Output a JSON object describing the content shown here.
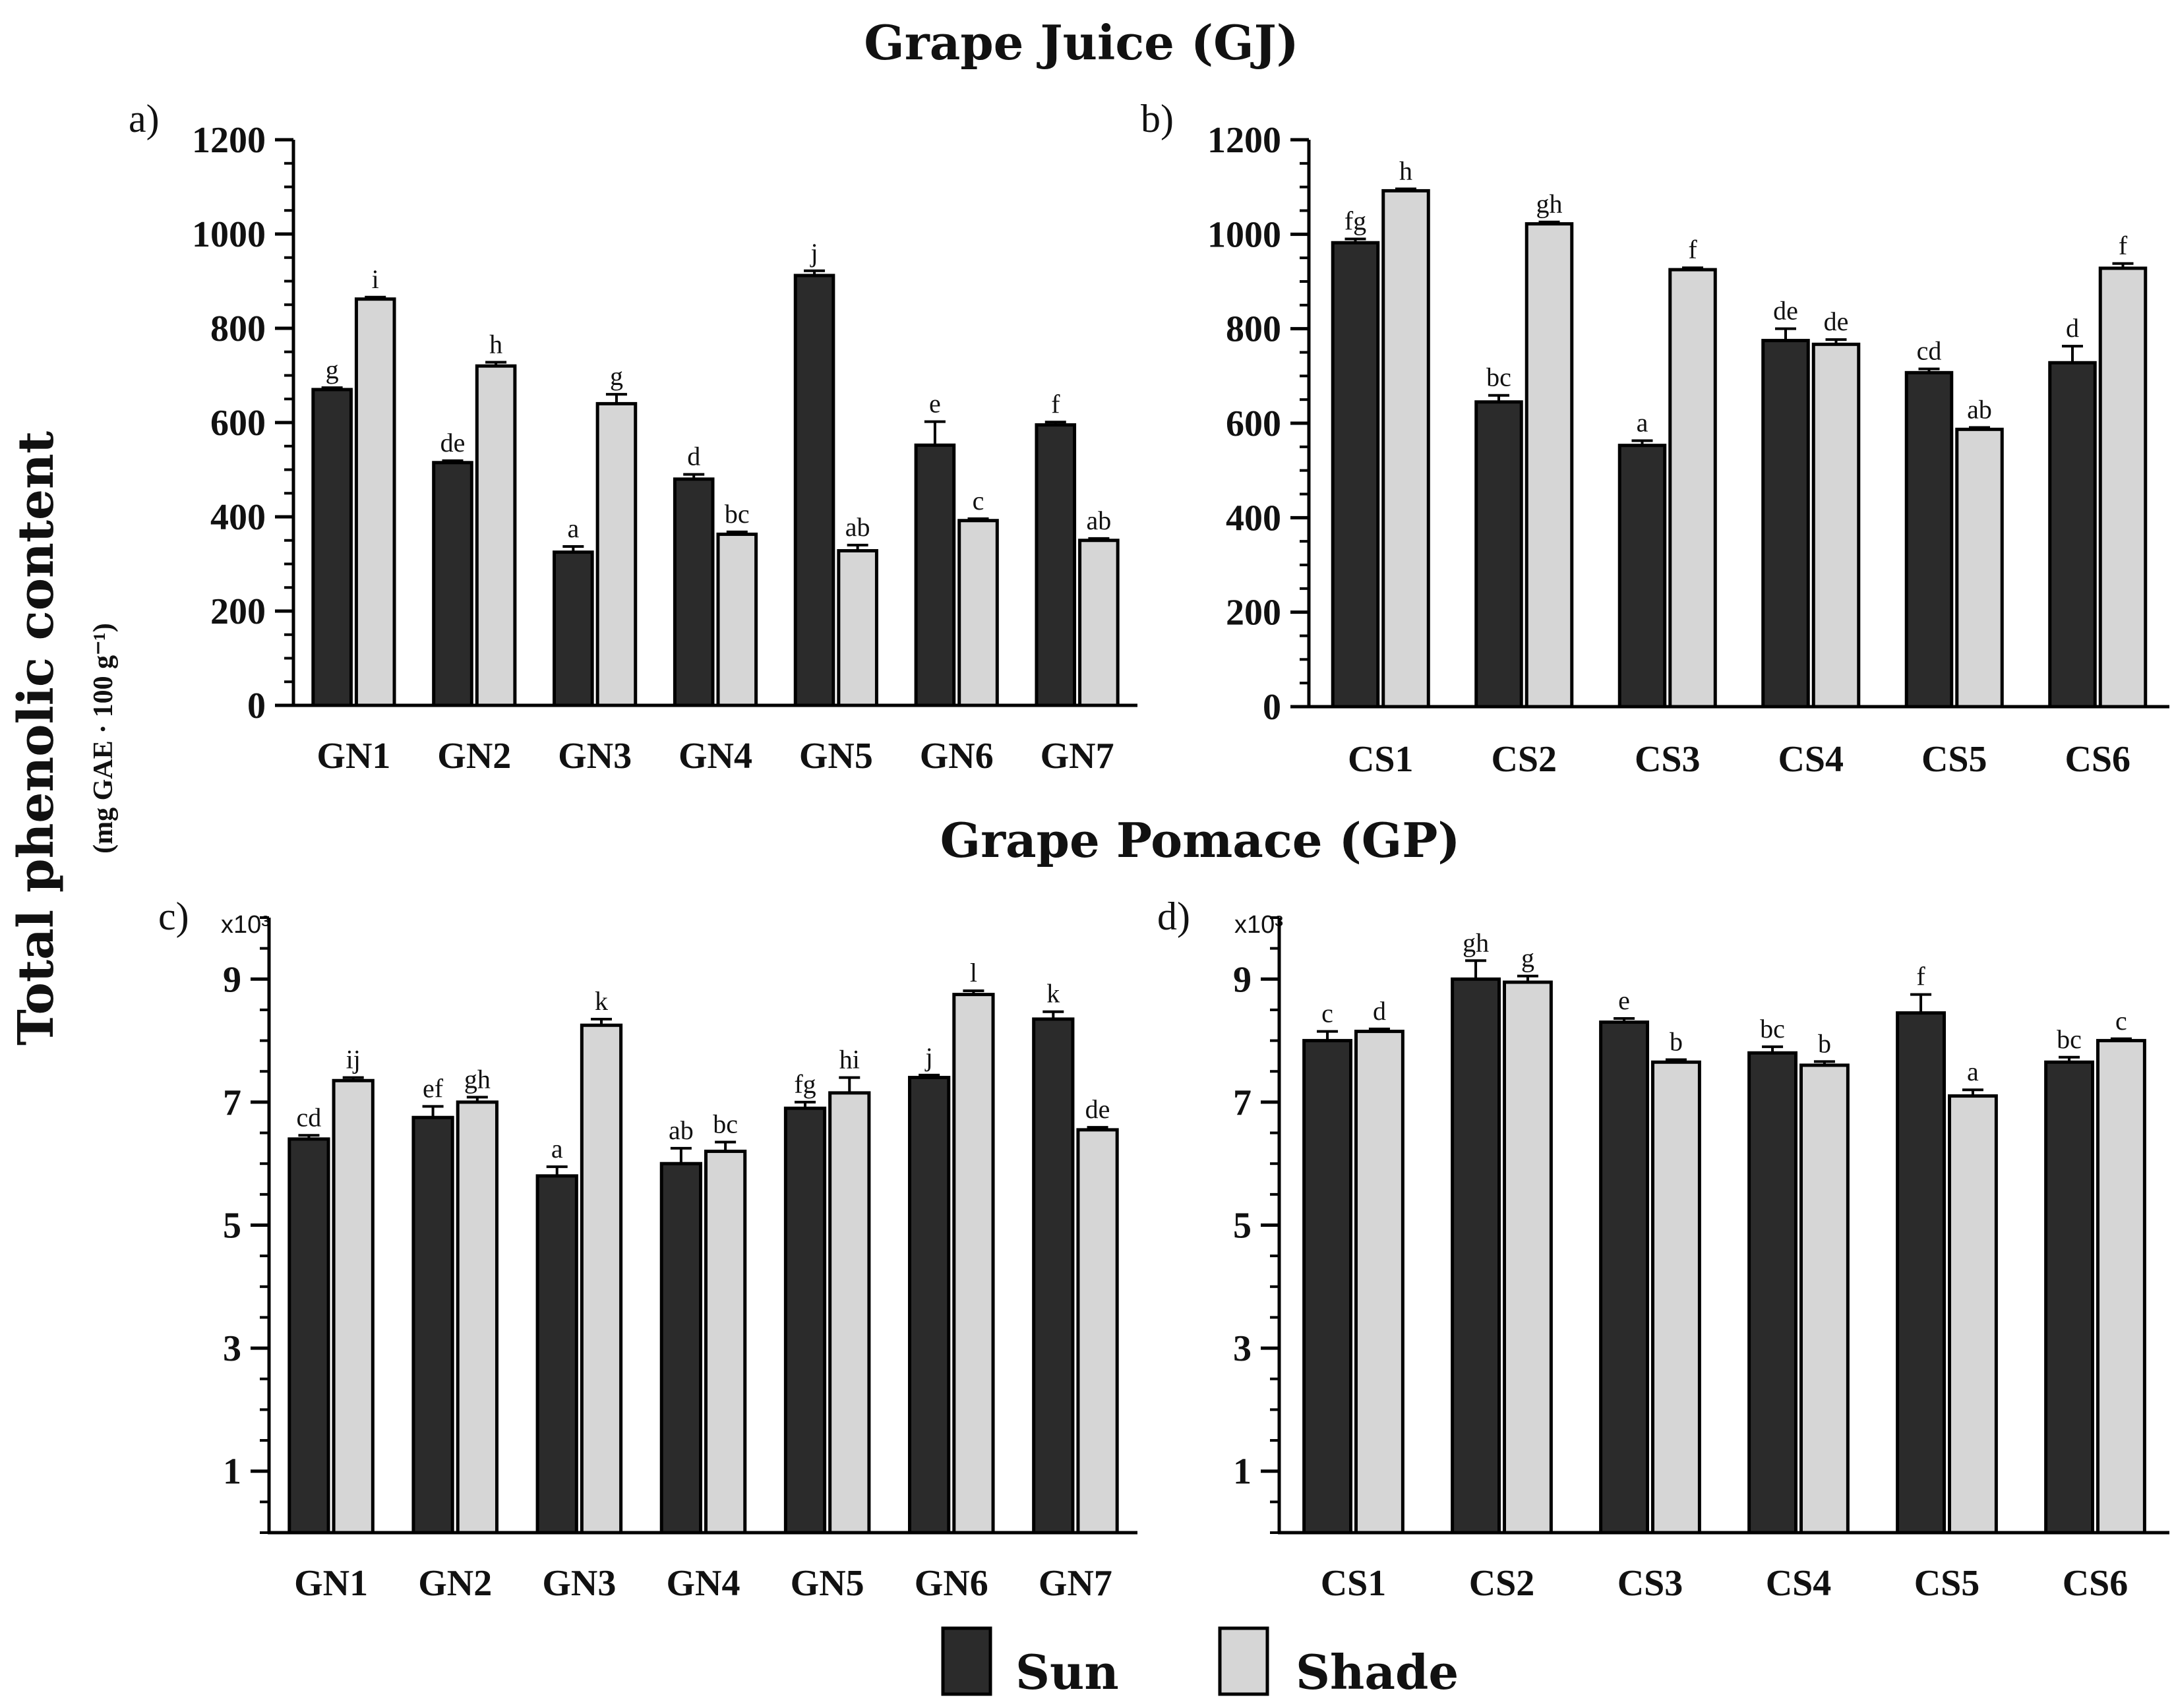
{
  "titles": {
    "juice": "Grape Juice (GJ)",
    "pomace": "Grape Pomace (GP)"
  },
  "ylabel": {
    "main": "Total phenolic content",
    "unit": "(mg GAE · 100 g⁻¹)"
  },
  "legend": {
    "sun": "Sun",
    "shade": "Shade",
    "sun_color": "#2b2b2b",
    "shade_color": "#d6d6d6"
  },
  "chart_data": [
    {
      "type": "bar",
      "label": "a)",
      "scale_label": "",
      "categories": [
        "GN1",
        "GN2",
        "GN3",
        "GN4",
        "GN5",
        "GN6",
        "GN7"
      ],
      "ylim": [
        0,
        1200
      ],
      "yticks": [
        0,
        200,
        400,
        600,
        800,
        1000,
        1200
      ],
      "series": [
        {
          "name": "Sun",
          "values": [
            670,
            515,
            325,
            480,
            912,
            552,
            595
          ],
          "errors": [
            4,
            4,
            12,
            10,
            10,
            50,
            6
          ],
          "letters": [
            "g",
            "de",
            "a",
            "d",
            "j",
            "e",
            "f"
          ]
        },
        {
          "name": "Shade",
          "values": [
            862,
            720,
            640,
            363,
            328,
            392,
            350
          ],
          "errors": [
            4,
            8,
            20,
            5,
            12,
            4,
            4
          ],
          "letters": [
            "i",
            "h",
            "g",
            "bc",
            "ab",
            "c",
            "ab"
          ]
        }
      ]
    },
    {
      "type": "bar",
      "label": "b)",
      "scale_label": "",
      "categories": [
        "CS1",
        "CS2",
        "CS3",
        "CS4",
        "CS5",
        "CS6"
      ],
      "ylim": [
        0,
        1200
      ],
      "yticks": [
        0,
        200,
        400,
        600,
        800,
        1000,
        1200
      ],
      "series": [
        {
          "name": "Sun",
          "values": [
            982,
            645,
            553,
            775,
            707,
            728
          ],
          "errors": [
            8,
            14,
            10,
            25,
            8,
            35
          ],
          "letters": [
            "fg",
            "bc",
            "a",
            "de",
            "cd",
            "d"
          ]
        },
        {
          "name": "Shade",
          "values": [
            1092,
            1022,
            925,
            767,
            587,
            928
          ],
          "errors": [
            4,
            4,
            4,
            10,
            4,
            10
          ],
          "letters": [
            "h",
            "gh",
            "f",
            "de",
            "ab",
            "f"
          ]
        }
      ]
    },
    {
      "type": "bar",
      "label": "c)",
      "scale_label": "x10³",
      "categories": [
        "GN1",
        "GN2",
        "GN3",
        "GN4",
        "GN5",
        "GN6",
        "GN7"
      ],
      "ylim": [
        0,
        10
      ],
      "yticks": [
        1,
        3,
        5,
        7,
        9
      ],
      "series": [
        {
          "name": "Sun",
          "values": [
            6.4,
            6.75,
            5.8,
            6.0,
            6.9,
            7.4,
            8.35
          ],
          "errors": [
            0.06,
            0.18,
            0.15,
            0.25,
            0.1,
            0.04,
            0.12
          ],
          "letters": [
            "cd",
            "ef",
            "a",
            "ab",
            "fg",
            "j",
            "k"
          ]
        },
        {
          "name": "Shade",
          "values": [
            7.35,
            7.0,
            8.25,
            6.2,
            7.15,
            8.75,
            6.55
          ],
          "errors": [
            0.05,
            0.08,
            0.1,
            0.15,
            0.25,
            0.06,
            0.04
          ],
          "letters": [
            "ij",
            "gh",
            "k",
            "bc",
            "hi",
            "l",
            "de"
          ]
        }
      ]
    },
    {
      "type": "bar",
      "label": "d)",
      "scale_label": "x10³",
      "categories": [
        "CS1",
        "CS2",
        "CS3",
        "CS4",
        "CS5",
        "CS6"
      ],
      "ylim": [
        0,
        10
      ],
      "yticks": [
        1,
        3,
        5,
        7,
        9
      ],
      "series": [
        {
          "name": "Sun",
          "values": [
            8.0,
            9.0,
            8.3,
            7.8,
            8.45,
            7.65
          ],
          "errors": [
            0.15,
            0.3,
            0.06,
            0.1,
            0.3,
            0.08
          ],
          "letters": [
            "c",
            "gh",
            "e",
            "bc",
            "f",
            "bc"
          ]
        },
        {
          "name": "Shade",
          "values": [
            8.15,
            8.95,
            7.65,
            7.6,
            7.1,
            8.0
          ],
          "errors": [
            0.04,
            0.1,
            0.04,
            0.06,
            0.1,
            0.03
          ],
          "letters": [
            "d",
            "g",
            "b",
            "b",
            "a",
            "c"
          ]
        }
      ]
    }
  ]
}
